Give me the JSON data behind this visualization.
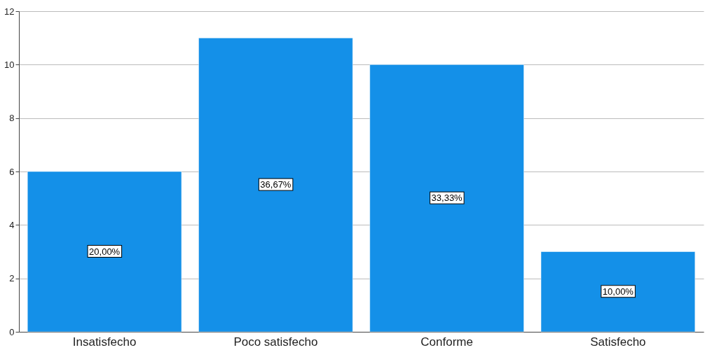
{
  "chart_data": {
    "type": "bar",
    "categories": [
      "Insatisfecho",
      "Poco satisfecho",
      "Conforme",
      "Satisfecho"
    ],
    "values": [
      6,
      11,
      10,
      3
    ],
    "annotations": [
      "20,00%",
      "36,67%",
      "33,33%",
      "10,00%"
    ],
    "color": "#1490e8",
    "ylim": [
      0,
      12
    ],
    "yticks": [
      0,
      2,
      4,
      6,
      8,
      10,
      12
    ],
    "grid": "y"
  }
}
